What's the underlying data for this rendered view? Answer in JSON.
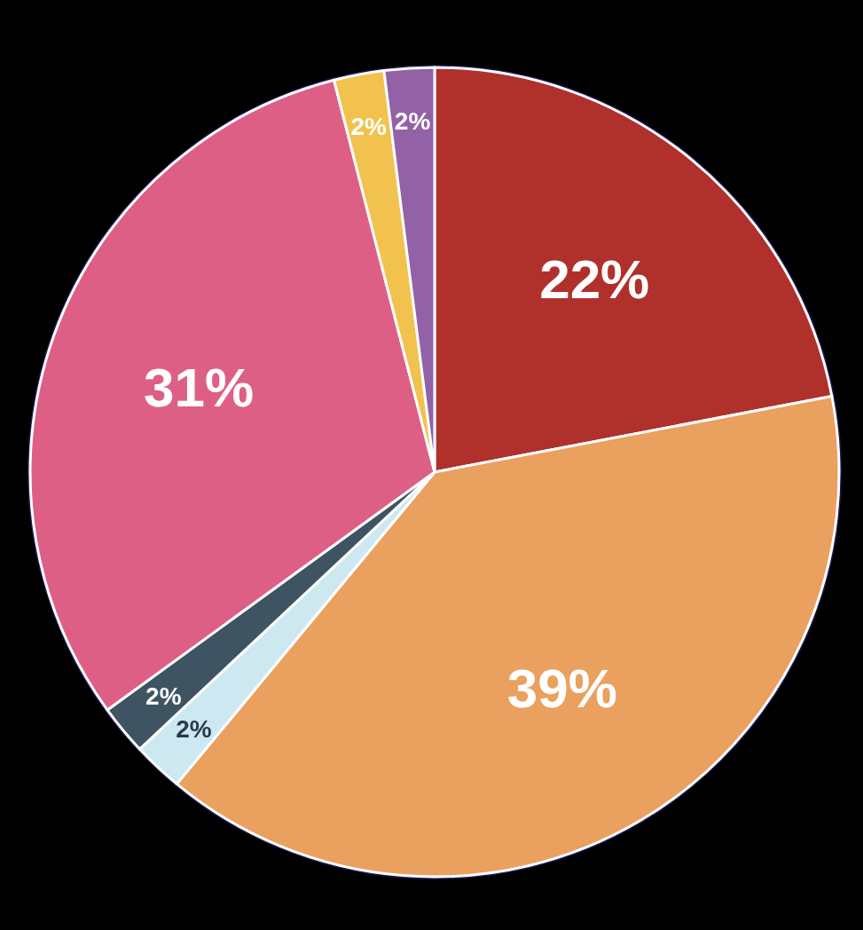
{
  "chart_data": {
    "type": "pie",
    "categories": [
      null,
      null,
      null,
      null,
      null,
      null,
      null
    ],
    "values": [
      22,
      39,
      2,
      2,
      31,
      2,
      2
    ],
    "colors": [
      "#b0302c",
      "#eaa05e",
      "#cde8f0",
      "#3e5462",
      "#de5f86",
      "#f2c24e",
      "#9361a6"
    ],
    "value_labels": [
      "22%",
      "39%",
      "2%",
      "2%",
      "31%",
      "2%",
      "2%"
    ]
  }
}
